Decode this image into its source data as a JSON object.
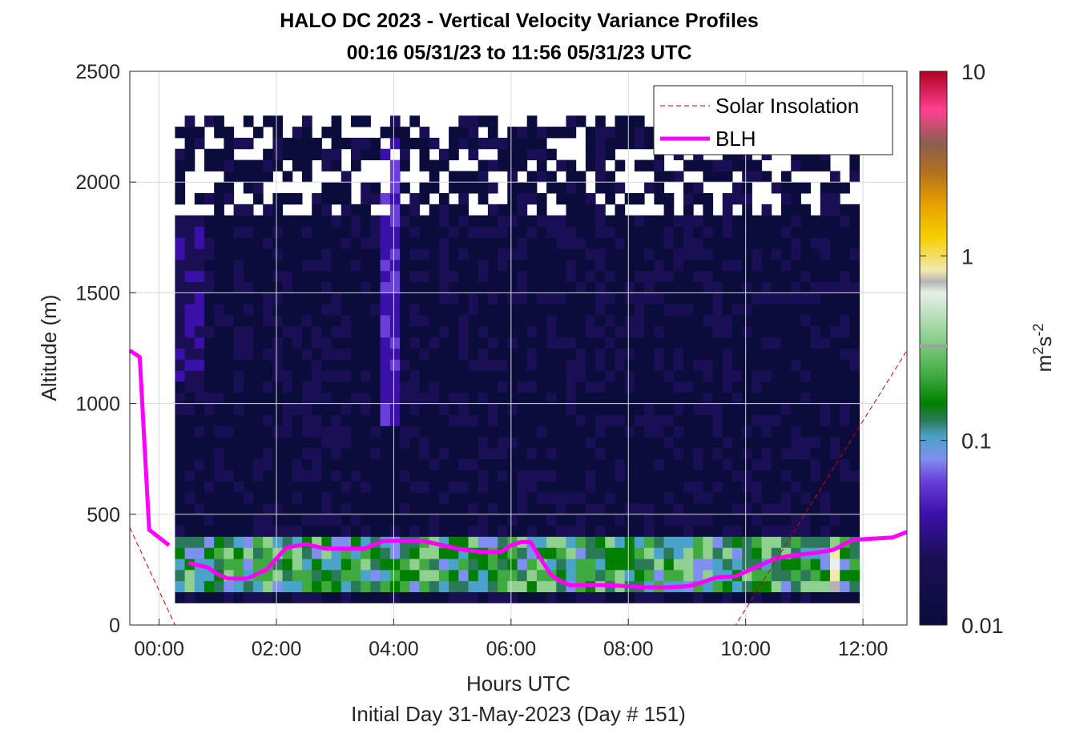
{
  "chart_data": {
    "type": "heatmap",
    "title": "HALO DC 2023 - Vertical Velocity Variance Profiles",
    "subtitle": "00:16 05/31/23 to 11:56 05/31/23  UTC",
    "xlabel": "Hours UTC",
    "xlabel2": "Initial Day 31-May-2023 (Day # 151)",
    "ylabel": "Altitude (m)",
    "xlim": [
      -0.5,
      12.75
    ],
    "ylim": [
      0,
      2500
    ],
    "x_ticks": [
      0,
      2,
      4,
      6,
      8,
      10,
      12
    ],
    "x_tick_labels": [
      "00:00",
      "02:00",
      "04:00",
      "06:00",
      "08:00",
      "10:00",
      "12:00"
    ],
    "y_ticks": [
      0,
      500,
      1000,
      1500,
      2000,
      2500
    ],
    "y_tick_labels": [
      "0",
      "500",
      "1000",
      "1500",
      "2000",
      "2500"
    ],
    "grid": true,
    "legend_position": "top-right",
    "colorbar": {
      "label_base": "m",
      "label_sup1": "2",
      "label_mid": "s",
      "label_sup2": "-2",
      "scale": "log",
      "range": [
        0.01,
        10
      ],
      "ticks": [
        0.01,
        0.1,
        1,
        10
      ],
      "tick_labels": [
        "0.01",
        "0.1",
        "1",
        "10"
      ],
      "colormap": [
        "#0a0d3c",
        "#1a0f55",
        "#3a10a8",
        "#6a3fd9",
        "#7e8ff0",
        "#4aa3c8",
        "#2a7a5a",
        "#008000",
        "#3faa3f",
        "#8fd08f",
        "#e8f0e8",
        "#b4b4b4",
        "#f2e8b0",
        "#f5d000",
        "#e8a000",
        "#b07020",
        "#8b5e50",
        "#ff4090",
        "#d0003a",
        "#b00020"
      ]
    },
    "heatmap_cells": {
      "time_step_hours": 0.1667,
      "altitude_step_m": 50,
      "time_range": [
        0.27,
        11.93
      ],
      "altitude_range": [
        100,
        2300
      ],
      "dominant_value": 0.01,
      "features": [
        {
          "time_range": [
            0.27,
            11.93
          ],
          "altitude_range": [
            150,
            350
          ],
          "value_range": [
            0.05,
            0.3
          ]
        },
        {
          "time_range": [
            3.73,
            3.97
          ],
          "altitude_range": [
            900,
            2150
          ],
          "value_range": [
            0.02,
            0.04
          ]
        },
        {
          "time_range": [
            0.27,
            0.77
          ],
          "altitude_range": [
            1100,
            1800
          ],
          "value_range": [
            0.015,
            0.025
          ]
        },
        {
          "time_range": [
            11.3,
            11.6
          ],
          "altitude_range": [
            150,
            300
          ],
          "value_range": [
            0.3,
            0.8
          ]
        }
      ]
    },
    "series": [
      {
        "name": "BLH",
        "color": "#ff00ff",
        "x": [
          -0.5,
          -0.33,
          -0.17,
          0.17,
          0.5,
          0.83,
          1.0,
          1.17,
          1.5,
          1.83,
          2.17,
          2.5,
          2.83,
          3.17,
          3.5,
          3.83,
          4.17,
          4.5,
          4.83,
          5.17,
          5.5,
          5.83,
          6.0,
          6.17,
          6.33,
          6.67,
          6.83,
          7.0,
          7.33,
          7.67,
          8.0,
          8.33,
          8.67,
          9.0,
          9.17,
          9.5,
          9.83,
          10.17,
          10.5,
          10.83,
          11.17,
          11.5,
          11.83,
          12.17,
          12.5,
          12.75
        ],
        "y": [
          1240,
          1210,
          430,
          360,
          280,
          260,
          230,
          210,
          210,
          250,
          350,
          365,
          345,
          345,
          345,
          380,
          380,
          380,
          360,
          340,
          330,
          330,
          360,
          375,
          375,
          230,
          200,
          180,
          180,
          180,
          175,
          170,
          170,
          175,
          185,
          215,
          220,
          260,
          300,
          315,
          325,
          340,
          385,
          390,
          395,
          420
        ],
        "gaps_after_index": [
          3
        ]
      },
      {
        "name": "Solar Insolation",
        "color": "#cc0000",
        "style": "dashed",
        "x": [
          -0.5,
          0.27,
          9.83,
          12.75
        ],
        "y": [
          440,
          0,
          0,
          1240
        ]
      }
    ]
  }
}
